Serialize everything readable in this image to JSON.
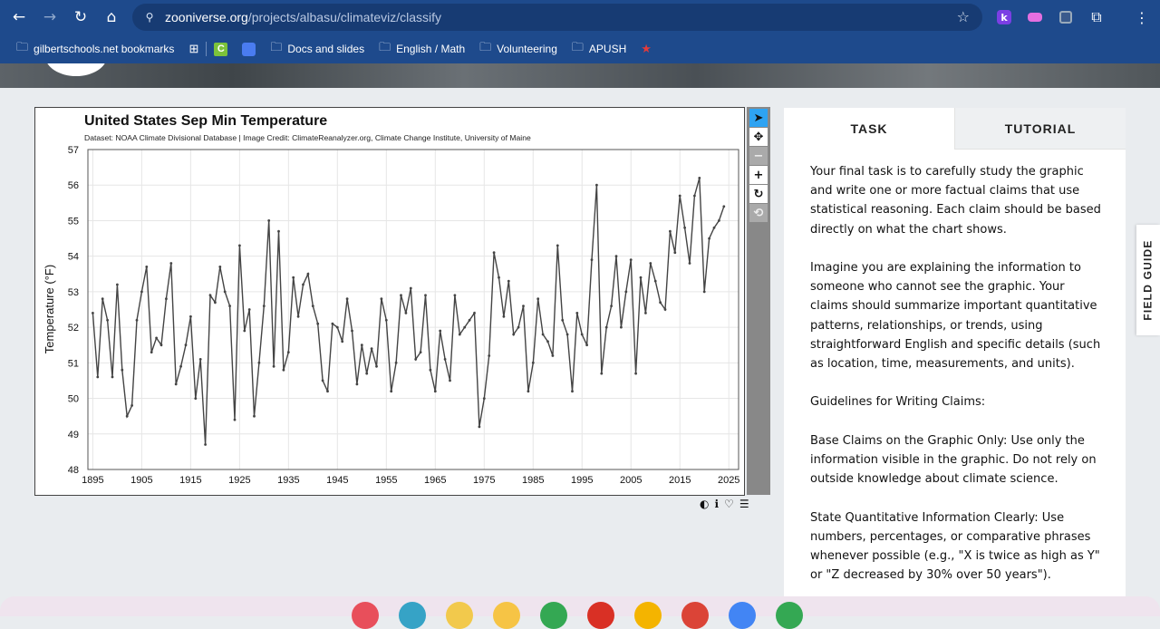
{
  "browser": {
    "url_host": "zooniverse.org",
    "url_path": "/projects/albasu/climateviz/classify",
    "extensions": [
      "k-extension-icon",
      "puzzle-extension-icon",
      "extensions-icon"
    ],
    "bookmarks": [
      {
        "label": "gilbertschools.net bookmarks",
        "icon": "managed-folder-icon"
      },
      {
        "label": "",
        "icon": "apps-grid-icon"
      },
      {
        "label": "",
        "icon": "c-app-icon"
      },
      {
        "label": "",
        "icon": "pattern-app-icon"
      },
      {
        "label": "Docs and slides",
        "icon": "folder-icon"
      },
      {
        "label": "English / Math",
        "icon": "folder-icon"
      },
      {
        "label": "Volunteering",
        "icon": "folder-icon"
      },
      {
        "label": "APUSH",
        "icon": "folder-icon"
      },
      {
        "label": "",
        "icon": "flag-app-icon"
      }
    ]
  },
  "chart_data": {
    "type": "line",
    "title": "United States Sep Min Temperature",
    "subtitle": "Dataset: NOAA Climate Divisional Database | Image Credit: ClimateReanalyzer.org, Climate Change Institute, University of Maine",
    "xlabel": "",
    "ylabel": "Temperature (°F)",
    "xlim": [
      1894,
      2027
    ],
    "ylim": [
      48,
      57
    ],
    "xticks": [
      1895,
      1905,
      1915,
      1925,
      1935,
      1945,
      1955,
      1965,
      1975,
      1985,
      1995,
      2005,
      2015,
      2025
    ],
    "yticks": [
      48,
      49,
      50,
      51,
      52,
      53,
      54,
      55,
      56,
      57
    ],
    "grid": true,
    "series": [
      {
        "name": "",
        "color": "#444444",
        "x": [
          1895,
          1896,
          1897,
          1898,
          1899,
          1900,
          1901,
          1902,
          1903,
          1904,
          1905,
          1906,
          1907,
          1908,
          1909,
          1910,
          1911,
          1912,
          1913,
          1914,
          1915,
          1916,
          1917,
          1918,
          1919,
          1920,
          1921,
          1922,
          1923,
          1924,
          1925,
          1926,
          1927,
          1928,
          1929,
          1930,
          1931,
          1932,
          1933,
          1934,
          1935,
          1936,
          1937,
          1938,
          1939,
          1940,
          1941,
          1942,
          1943,
          1944,
          1945,
          1946,
          1947,
          1948,
          1949,
          1950,
          1951,
          1952,
          1953,
          1954,
          1955,
          1956,
          1957,
          1958,
          1959,
          1960,
          1961,
          1962,
          1963,
          1964,
          1965,
          1966,
          1967,
          1968,
          1969,
          1970,
          1971,
          1972,
          1973,
          1974,
          1975,
          1976,
          1977,
          1978,
          1979,
          1980,
          1981,
          1982,
          1983,
          1984,
          1985,
          1986,
          1987,
          1988,
          1989,
          1990,
          1991,
          1992,
          1993,
          1994,
          1995,
          1996,
          1997,
          1998,
          1999,
          2000,
          2001,
          2002,
          2003,
          2004,
          2005,
          2006,
          2007,
          2008,
          2009,
          2010,
          2011,
          2012,
          2013,
          2014,
          2015,
          2016,
          2017,
          2018,
          2019,
          2020,
          2021,
          2022,
          2023,
          2024
        ],
        "values": [
          52.4,
          50.6,
          52.8,
          52.2,
          50.6,
          53.2,
          50.8,
          49.5,
          49.8,
          52.2,
          53.0,
          53.7,
          51.3,
          51.7,
          51.5,
          52.8,
          53.8,
          50.4,
          50.9,
          51.5,
          52.3,
          50.0,
          51.1,
          48.7,
          52.9,
          52.7,
          53.7,
          53.0,
          52.6,
          49.4,
          54.3,
          51.9,
          52.5,
          49.5,
          51.0,
          52.6,
          55.0,
          50.9,
          54.7,
          50.8,
          51.3,
          53.4,
          52.3,
          53.2,
          53.5,
          52.6,
          52.1,
          50.5,
          50.2,
          52.1,
          52.0,
          51.6,
          52.8,
          51.9,
          50.4,
          51.5,
          50.7,
          51.4,
          50.9,
          52.8,
          52.2,
          50.2,
          51.0,
          52.9,
          52.4,
          53.1,
          51.1,
          51.3,
          52.9,
          50.8,
          50.2,
          51.9,
          51.1,
          50.5,
          52.9,
          51.8,
          52.0,
          52.2,
          52.4,
          49.2,
          50.0,
          51.2,
          54.1,
          53.4,
          52.3,
          53.3,
          51.8,
          52.0,
          52.6,
          50.2,
          51.0,
          52.8,
          51.8,
          51.6,
          51.2,
          54.3,
          52.2,
          51.8,
          50.2,
          52.4,
          51.8,
          51.5,
          53.9,
          56.0,
          50.7,
          52.0,
          52.6,
          54.0,
          52.0,
          53.0,
          53.9,
          50.7,
          53.4,
          52.4,
          53.8,
          53.3,
          52.7,
          52.5,
          54.7,
          54.1,
          55.7,
          54.8,
          53.8,
          55.7,
          56.2,
          53.0,
          54.5,
          54.8,
          55.0,
          55.4
        ]
      }
    ]
  },
  "chart_tools": [
    "select-arrow-icon",
    "pan-move-icon",
    "zoom-out-icon",
    "zoom-in-icon",
    "rotate-icon",
    "reset-icon"
  ],
  "chart_actions": [
    "contrast-icon",
    "info-icon",
    "heart-icon",
    "list-icon"
  ],
  "panel": {
    "tabs": {
      "task": "TASK",
      "tutorial": "TUTORIAL"
    },
    "paragraphs": [
      "Your final task is to carefully study the graphic and write one or more factual claims that use statistical reasoning. Each claim should be based directly on what the chart shows.",
      "Imagine you are explaining the information to someone who cannot see the graphic. Your claims should summarize important quantitative patterns, relationships, or trends, using straightforward English and specific details (such as location, time, measurements, and units).",
      "Guidelines for Writing Claims:",
      "Base Claims on the Graphic Only: Use only the information visible in the graphic. Do not rely on outside knowledge about climate science.",
      "State Quantitative Information Clearly: Use numbers, percentages, or comparative phrases whenever possible (e.g., \"X is twice as high as Y\" or \"Z decreased by 30% over 50 years\")."
    ]
  },
  "field_guide": "FIELD GUIDE",
  "taskbar": {
    "apps": [
      {
        "icon": "game-app-icon",
        "color": "#e84f5b"
      },
      {
        "icon": "music-app-icon",
        "color": "#36a3c6"
      },
      {
        "icon": "classroom-app-icon",
        "color": "#f2c94c"
      },
      {
        "icon": "keep-app-icon",
        "color": "#f6c445"
      },
      {
        "icon": "drive-app-icon",
        "color": "#34a853"
      },
      {
        "icon": "gmail-app-icon",
        "color": "#d93025"
      },
      {
        "icon": "slides-app-icon",
        "color": "#f4b400"
      },
      {
        "icon": "chrome-app-icon",
        "color": "#db4437"
      },
      {
        "icon": "docs-app-icon",
        "color": "#4285f4"
      },
      {
        "icon": "play-store-app-icon",
        "color": "#34a853"
      }
    ]
  }
}
